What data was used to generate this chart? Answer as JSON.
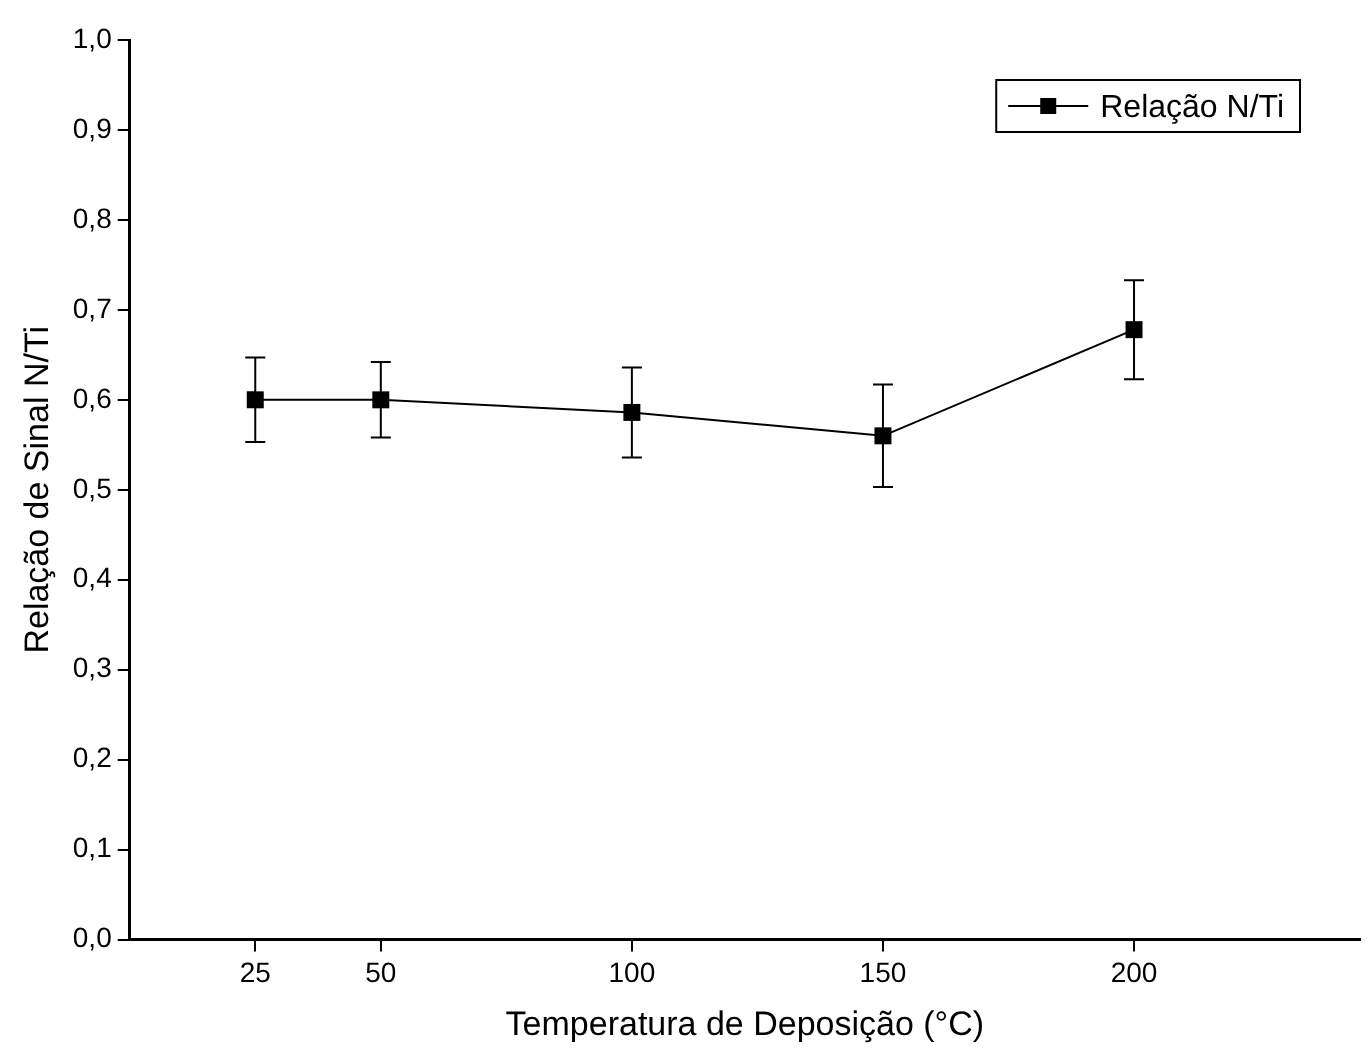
{
  "chart_data": {
    "type": "line",
    "xlabel": "Temperatura de Deposição (°C)",
    "ylabel": "Relação de Sinal N/Ti",
    "x": [
      25,
      50,
      100,
      150,
      200
    ],
    "series": [
      {
        "name": "Relação N/Ti",
        "color": "#000000",
        "values": [
          0.6,
          0.6,
          0.586,
          0.56,
          0.678
        ],
        "errors": [
          0.047,
          0.042,
          0.05,
          0.057,
          0.055
        ]
      }
    ],
    "xlim": [
      0,
      245
    ],
    "xticks": [
      25,
      50,
      100,
      150,
      200
    ],
    "ylim": [
      0,
      1
    ],
    "yticks": [
      {
        "value": 0,
        "label": "0,0"
      },
      {
        "value": 0.1,
        "label": "0,1"
      },
      {
        "value": 0.2,
        "label": "0,2"
      },
      {
        "value": 0.3,
        "label": "0,3"
      },
      {
        "value": 0.4,
        "label": "0,4"
      },
      {
        "value": 0.5,
        "label": "0,5"
      },
      {
        "value": 0.6,
        "label": "0,6"
      },
      {
        "value": 0.7,
        "label": "0,7"
      },
      {
        "value": 0.8,
        "label": "0,8"
      },
      {
        "value": 0.9,
        "label": "0,9"
      },
      {
        "value": 1,
        "label": "1,0"
      }
    ],
    "grid": false,
    "legend": "top right",
    "marker": "square",
    "line_style": "solid"
  }
}
